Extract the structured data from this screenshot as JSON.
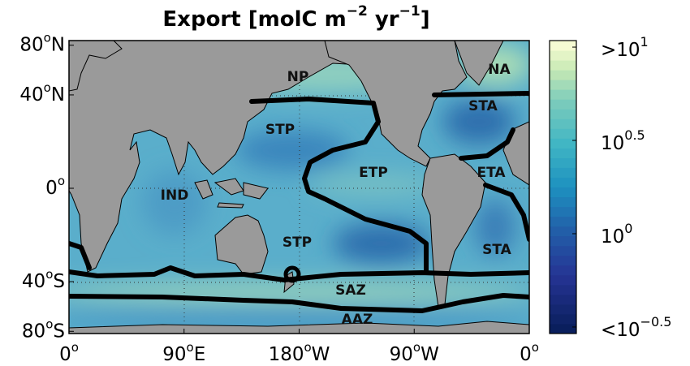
{
  "title": {
    "text": "Export [molC m",
    "sup1": "−2",
    "mid": " yr",
    "sup2": "−1",
    "end": "]"
  },
  "map": {
    "lat_ticks": [
      {
        "value": 80,
        "base": "80",
        "sup": "o",
        "suffix": "N"
      },
      {
        "value": 40,
        "base": "40",
        "sup": "o",
        "suffix": "N"
      },
      {
        "value": 0,
        "base": "0",
        "sup": "o",
        "suffix": ""
      },
      {
        "value": -40,
        "base": "40",
        "sup": "o",
        "suffix": "S"
      },
      {
        "value": -80,
        "base": "80",
        "sup": "o",
        "suffix": "S"
      }
    ],
    "lon_ticks": [
      {
        "value": 0,
        "base": "0",
        "sup": "o",
        "suffix": ""
      },
      {
        "value": 90,
        "base": "90",
        "sup": "o",
        "suffix": "E"
      },
      {
        "value": 180,
        "base": "180",
        "sup": "o",
        "suffix": "W"
      },
      {
        "value": 270,
        "base": "90",
        "sup": "o",
        "suffix": "W"
      },
      {
        "value": 360,
        "base": "0",
        "sup": "o",
        "suffix": ""
      }
    ],
    "regions": [
      "NP",
      "NA",
      "STA",
      "STP",
      "ETP",
      "ETA",
      "IND",
      "STP",
      "STA",
      "SAZ",
      "AAZ"
    ]
  },
  "colorbar": {
    "lim": [
      -0.535,
      1.035
    ],
    "ticks": [
      {
        "value": 1,
        "base": ">10",
        "sup": "1"
      },
      {
        "value": 0.5,
        "base": "10",
        "sup": "0.5"
      },
      {
        "value": 0,
        "base": "10",
        "sup": "0"
      },
      {
        "value": -0.5,
        "base": "<10",
        "sup": "−0.5"
      }
    ]
  }
}
